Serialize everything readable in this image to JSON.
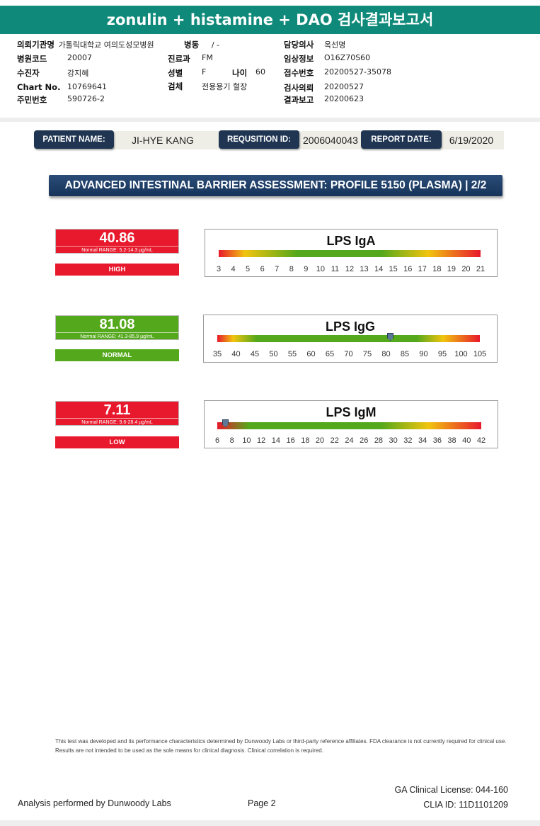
{
  "report_title": "zonulin + histamine + DAO 검사결과보고서",
  "header_info": {
    "left": [
      {
        "label": "의뢰기관명",
        "value": "가톨릭대학교 여의도성모병원"
      },
      {
        "label": "병원코드",
        "value": "20007"
      },
      {
        "label": "수진자",
        "value": "강지혜"
      },
      {
        "label": "Chart No.",
        "value": "10769641"
      },
      {
        "label": "주민번호",
        "value": "590726-2"
      }
    ],
    "middle": [
      {
        "label": "병동",
        "value": "/ -"
      },
      {
        "label": "진료과",
        "value": "FM"
      },
      {
        "label": "성별",
        "value": "F"
      },
      {
        "label": "검체",
        "value": "전용용기 혈장"
      }
    ],
    "age_label": "나이",
    "age_value": "60",
    "right": [
      {
        "label": "담당의사",
        "value": "옥선명"
      },
      {
        "label": "임상정보",
        "value": "O16Z70S60"
      },
      {
        "label": "접수번호",
        "value": "20200527-35078"
      },
      {
        "label": "검사의뢰",
        "value": "20200527"
      },
      {
        "label": "결과보고",
        "value": "20200623"
      }
    ]
  },
  "patient_bar": {
    "patient_name_label": "PATIENT NAME:",
    "patient_name": "JI-HYE KANG",
    "requisition_label": "REQUSITION ID:",
    "requisition_id": "2006040043",
    "report_date_label": "REPORT DATE:",
    "report_date": "6/19/2020"
  },
  "section_title": "ADVANCED INTESTINAL BARRIER ASSESSMENT: PROFILE 5150 (PLASMA) | 2/2",
  "results": [
    {
      "name": "LPS IgA",
      "value": "40.86",
      "range": "Normal RANGE: 5.2-14.3 µg/mL",
      "status": "HIGH",
      "color": "#e8192c",
      "ticks": [
        "3",
        "4",
        "5",
        "6",
        "7",
        "8",
        "9",
        "10",
        "11",
        "12",
        "13",
        "14",
        "15",
        "16",
        "17",
        "18",
        "19",
        "20",
        "21"
      ]
    },
    {
      "name": "LPS IgG",
      "value": "81.08",
      "range": "Normal RANGE: 41.3-85.9 µg/mL",
      "status": "NORMAL",
      "color": "#54a81b",
      "ticks": [
        "35",
        "40",
        "45",
        "50",
        "55",
        "60",
        "65",
        "70",
        "75",
        "80",
        "85",
        "90",
        "95",
        "100",
        "105"
      ]
    },
    {
      "name": "LPS IgM",
      "value": "7.11",
      "range": "Normal RANGE: 9.6-28.4 µg/mL",
      "status": "LOW",
      "color": "#e8192c",
      "ticks": [
        "6",
        "8",
        "10",
        "12",
        "14",
        "16",
        "18",
        "20",
        "22",
        "24",
        "26",
        "28",
        "30",
        "32",
        "34",
        "36",
        "38",
        "40",
        "42"
      ]
    }
  ],
  "disclaimer": "This test was developed and its performance characteristics determined by Dunwoody Labs or third-party reference affiliates. FDA clearance is not currently required for clinical use. Results are not intended to be used as the sole means for clinical diagnosis. Clinical correlation is required.",
  "footer": {
    "analysis": "Analysis performed by Dunwoody Labs",
    "page": "Page 2",
    "license": "GA Clinical License: 044-160",
    "clia": "CLIA ID: 11D1101209"
  }
}
